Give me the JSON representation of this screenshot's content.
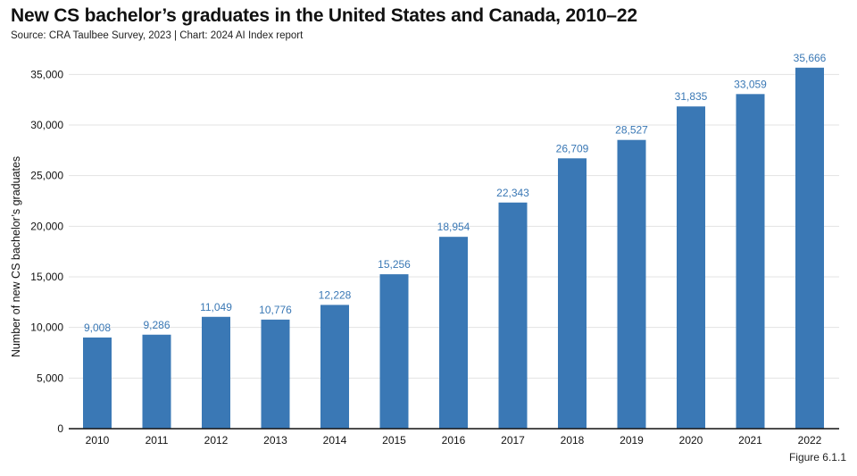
{
  "title": "New CS bachelor’s graduates in the United States and Canada, 2010–22",
  "subtitle": "Source: CRA Taulbee Survey, 2023 | Chart: 2024 AI Index report",
  "figure_label": "Figure 6.1.1",
  "colors": {
    "bar": "#3a78b5",
    "data_label": "#3a78b5",
    "grid": "#e3e3e3",
    "axis": "#111111"
  },
  "chart_data": {
    "type": "bar",
    "categories": [
      "2010",
      "2011",
      "2012",
      "2013",
      "2014",
      "2015",
      "2016",
      "2017",
      "2018",
      "2019",
      "2020",
      "2021",
      "2022"
    ],
    "values": [
      9008,
      9286,
      11049,
      10776,
      12228,
      15256,
      18954,
      22343,
      26709,
      28527,
      31835,
      33059,
      35666
    ],
    "value_labels": [
      "9,008",
      "9,286",
      "11,049",
      "10,776",
      "12,228",
      "15,256",
      "18,954",
      "22,343",
      "26,709",
      "28,527",
      "31,835",
      "33,059",
      "35,666"
    ],
    "ylabel": "Number of new CS bachelor’s graduates",
    "ylim": [
      0,
      37500
    ],
    "yticks": [
      0,
      5000,
      10000,
      15000,
      20000,
      25000,
      30000,
      35000
    ],
    "ytick_labels": [
      "0",
      "5,000",
      "10,000",
      "15,000",
      "20,000",
      "25,000",
      "30,000",
      "35,000"
    ],
    "grid": true
  }
}
